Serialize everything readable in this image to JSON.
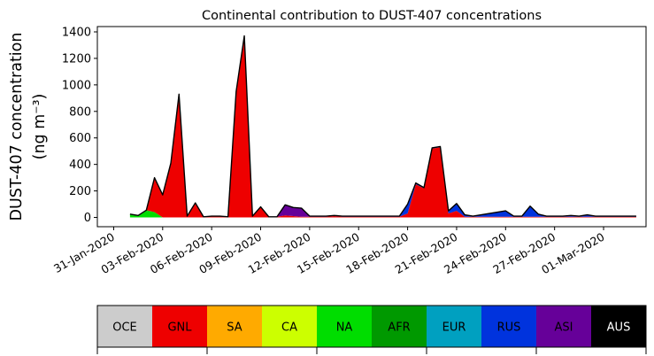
{
  "chart_data": {
    "type": "area",
    "stacked": true,
    "title": "Continental contribution to DUST-407 concentrations",
    "ylabel_line1": "DUST-407 concentration",
    "ylabel_line2": "(ng m⁻³)",
    "ylim": [
      -70,
      1440
    ],
    "yticks": [
      0,
      200,
      400,
      600,
      800,
      1000,
      1200,
      1400
    ],
    "xlim": [
      -3.0,
      30.6
    ],
    "xticks": [
      -2,
      1,
      4,
      7,
      10,
      13,
      16,
      19,
      22,
      25,
      28
    ],
    "xtick_labels": [
      "31-Jan-2020",
      "03-Feb-2020",
      "06-Feb-2020",
      "09-Feb-2020",
      "12-Feb-2020",
      "15-Feb-2020",
      "18-Feb-2020",
      "21-Feb-2020",
      "24-Feb-2020",
      "27-Feb-2020",
      "01-Mar-2020"
    ],
    "x_note": "x values are days relative to 02-Feb-2020",
    "x": [
      -1,
      -0.5,
      0,
      0.5,
      1,
      1.5,
      2,
      2.5,
      3,
      3.5,
      4,
      4.5,
      5,
      5.5,
      6,
      6.5,
      7,
      7.5,
      8,
      8.5,
      9,
      9.5,
      10,
      10.5,
      11,
      11.5,
      12,
      12.5,
      13,
      13.5,
      14,
      14.5,
      15,
      15.5,
      16,
      16.5,
      17,
      17.5,
      18,
      18.5,
      19,
      19.5,
      20,
      20.5,
      21,
      21.5,
      22,
      22.5,
      23,
      23.5,
      24,
      24.5,
      25,
      25.5,
      26,
      26.5,
      27,
      27.5,
      28,
      28.5,
      29,
      29.5,
      30
    ],
    "series": [
      {
        "name": "NA",
        "color": "#00dd00",
        "values": [
          20,
          10,
          50,
          40,
          0,
          0,
          0,
          0,
          0,
          0,
          0,
          0,
          0,
          0,
          0,
          0,
          0,
          0,
          0,
          0,
          0,
          0,
          0,
          0,
          0,
          0,
          0,
          0,
          0,
          0,
          0,
          0,
          0,
          0,
          0,
          0,
          0,
          0,
          0,
          0,
          0,
          0,
          0,
          0,
          0,
          0,
          0,
          0,
          0,
          0,
          0,
          0,
          0,
          0,
          0,
          0,
          0,
          0,
          0,
          0,
          0,
          0,
          0
        ]
      },
      {
        "name": "AFR",
        "color": "#009900",
        "values": [
          5,
          5,
          5,
          0,
          0,
          0,
          0,
          0,
          0,
          0,
          0,
          0,
          0,
          0,
          0,
          0,
          0,
          0,
          0,
          0,
          0,
          0,
          0,
          0,
          0,
          0,
          0,
          0,
          0,
          0,
          0,
          0,
          0,
          0,
          0,
          0,
          0,
          0,
          0,
          0,
          0,
          0,
          0,
          0,
          0,
          0,
          0,
          0,
          0,
          0,
          0,
          0,
          0,
          0,
          0,
          0,
          0,
          0,
          0,
          0,
          0,
          0,
          0
        ]
      },
      {
        "name": "GNL",
        "color": "#ee0000",
        "values": [
          0,
          0,
          0,
          260,
          170,
          410,
          930,
          10,
          110,
          5,
          10,
          10,
          5,
          950,
          1370,
          10,
          80,
          5,
          5,
          15,
          10,
          5,
          5,
          5,
          5,
          10,
          5,
          5,
          5,
          5,
          5,
          5,
          5,
          5,
          30,
          250,
          220,
          520,
          530,
          30,
          50,
          5,
          5,
          5,
          5,
          5,
          5,
          5,
          5,
          5,
          5,
          5,
          5,
          5,
          5,
          5,
          5,
          5,
          5,
          5,
          5,
          5,
          5
        ]
      },
      {
        "name": "RUS",
        "color": "#0033dd",
        "values": [
          0,
          0,
          0,
          0,
          0,
          0,
          0,
          0,
          0,
          0,
          0,
          0,
          0,
          0,
          0,
          0,
          0,
          0,
          0,
          0,
          0,
          0,
          0,
          0,
          0,
          0,
          0,
          0,
          0,
          0,
          0,
          0,
          0,
          0,
          70,
          10,
          5,
          5,
          5,
          20,
          55,
          15,
          5,
          15,
          25,
          35,
          45,
          5,
          5,
          75,
          20,
          5,
          5,
          5,
          10,
          5,
          15,
          5,
          5,
          5,
          5,
          5,
          5
        ]
      },
      {
        "name": "ASI",
        "color": "#660099",
        "values": [
          0,
          0,
          0,
          0,
          0,
          0,
          0,
          0,
          0,
          0,
          0,
          0,
          0,
          0,
          0,
          0,
          0,
          0,
          0,
          80,
          65,
          65,
          5,
          5,
          5,
          5,
          5,
          5,
          5,
          5,
          5,
          5,
          5,
          5,
          0,
          0,
          0,
          0,
          0,
          0,
          0,
          0,
          0,
          0,
          0,
          0,
          0,
          0,
          0,
          0,
          0,
          0,
          0,
          0,
          0,
          0,
          0,
          0,
          0,
          0,
          0,
          0,
          0
        ]
      },
      {
        "name": "EUR",
        "color": "#00a0c0",
        "values": [
          0,
          0,
          0,
          0,
          0,
          0,
          0,
          0,
          0,
          0,
          0,
          0,
          0,
          0,
          0,
          0,
          0,
          0,
          0,
          0,
          0,
          0,
          0,
          0,
          0,
          0,
          0,
          0,
          0,
          0,
          0,
          0,
          0,
          0,
          0,
          0,
          0,
          0,
          0,
          0,
          0,
          0,
          0,
          0,
          0,
          0,
          0,
          0,
          0,
          5,
          0,
          0,
          0,
          0,
          0,
          0,
          0,
          0,
          0,
          0,
          0,
          0,
          0
        ]
      }
    ],
    "legend": [
      {
        "label": "OCE",
        "color": "#cccccc",
        "text_color": "#000000"
      },
      {
        "label": "GNL",
        "color": "#ee0000",
        "text_color": "#000000"
      },
      {
        "label": "SA",
        "color": "#ffaa00",
        "text_color": "#000000"
      },
      {
        "label": "CA",
        "color": "#ccff00",
        "text_color": "#000000"
      },
      {
        "label": "NA",
        "color": "#00dd00",
        "text_color": "#000000"
      },
      {
        "label": "AFR",
        "color": "#009900",
        "text_color": "#000000"
      },
      {
        "label": "EUR",
        "color": "#00a0c0",
        "text_color": "#000000"
      },
      {
        "label": "RUS",
        "color": "#0033dd",
        "text_color": "#000000"
      },
      {
        "label": "ASI",
        "color": "#660099",
        "text_color": "#000000"
      },
      {
        "label": "AUS",
        "color": "#000000",
        "text_color": "#ffffff"
      }
    ],
    "legend_placement": "bottom colorbar",
    "grid": false
  }
}
